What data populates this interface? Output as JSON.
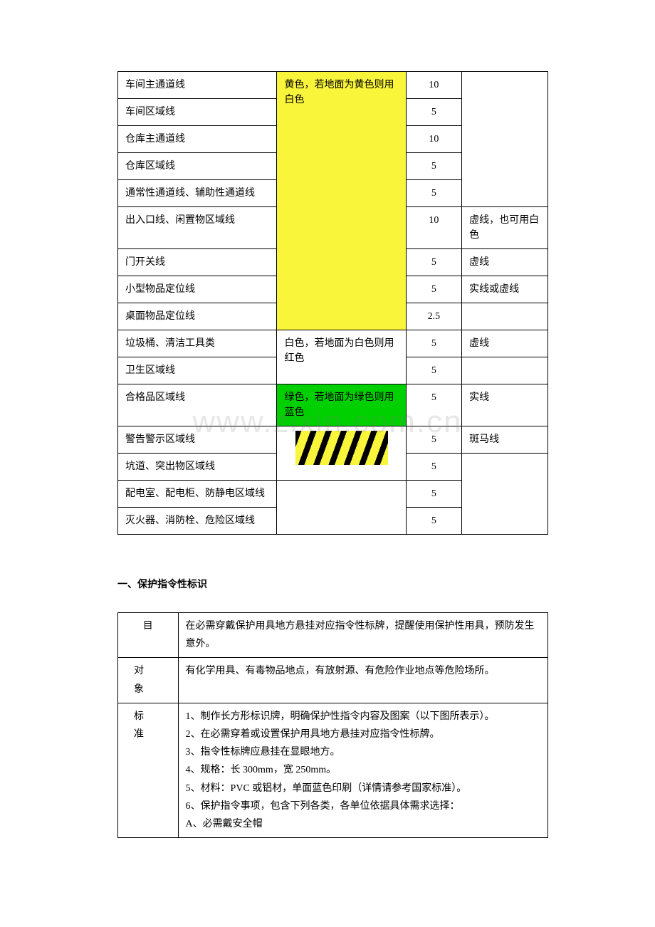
{
  "table1": {
    "rows": [
      {
        "name": "车间主通道线",
        "width": "10",
        "note": ""
      },
      {
        "name": "车间区域线",
        "width": "5",
        "note": ""
      },
      {
        "name": "仓库主通道线",
        "width": "10",
        "note": ""
      },
      {
        "name": "仓库区域线",
        "width": "5",
        "note": ""
      },
      {
        "name": "通常性通道线、辅助性通道线",
        "width": "5",
        "note": ""
      },
      {
        "name": "出入口线、闲置物区域线",
        "width": "10",
        "note": "虚线，也可用白色"
      },
      {
        "name": "门开关线",
        "width": "5",
        "note": "虚线"
      },
      {
        "name": "小型物品定位线",
        "width": "5",
        "note": "实线或虚线"
      },
      {
        "name": "桌面物品定位线",
        "width": "2.5",
        "note": ""
      },
      {
        "name": "垃圾桶、清洁工具类",
        "width": "5",
        "note": "虚线"
      },
      {
        "name": "卫生区域线",
        "width": "5",
        "note": ""
      },
      {
        "name": "合格品区域线",
        "width": "5",
        "note": "实线"
      },
      {
        "name": "警告警示区域线",
        "width": "5",
        "note": "斑马线"
      },
      {
        "name": "坑道、突出物区域线",
        "width": "5",
        "note": ""
      },
      {
        "name": "配电室、配电柜、防静电区域线",
        "width": "5",
        "note": ""
      },
      {
        "name": "灭火器、消防栓、危险区域线",
        "width": "5",
        "note": ""
      }
    ],
    "color1": "黄色，若地面为黄色则用白色",
    "color2": "白色，若地面为白色则用红色",
    "color3": "绿色，若地面为绿色则用蓝色"
  },
  "section_title": "一、保护指令性标识",
  "table2": {
    "row1_label": "目",
    "row1_content": "在必需穿戴保护用具地方悬挂对应指令性标牌，提醒使用保护性用具，预防发生意外。",
    "row2_label": "对　象",
    "row2_content": "有化学用具、有毒物品地点，有放射源、有危险作业地点等危险场所。",
    "row3_label": "标　准",
    "row3_lines": [
      "1、制作长方形标识牌，明确保护性指令内容及图案（以下图所表示）。",
      "2、在必需穿着或设置保护用具地方悬挂对应指令性标牌。",
      "3、指令性标牌应悬挂在显眼地方。",
      "4、规格：长 300mm，宽 250mm。",
      "5、材料：PVC 或铝材，单面蓝色印刷（详情请参考国家标准）。",
      "6、保护指令事项，包含下列各类，各单位依据具体需求选择：",
      "A、必需戴安全帽"
    ]
  },
  "watermark_text": "www.zixin.com.cn"
}
